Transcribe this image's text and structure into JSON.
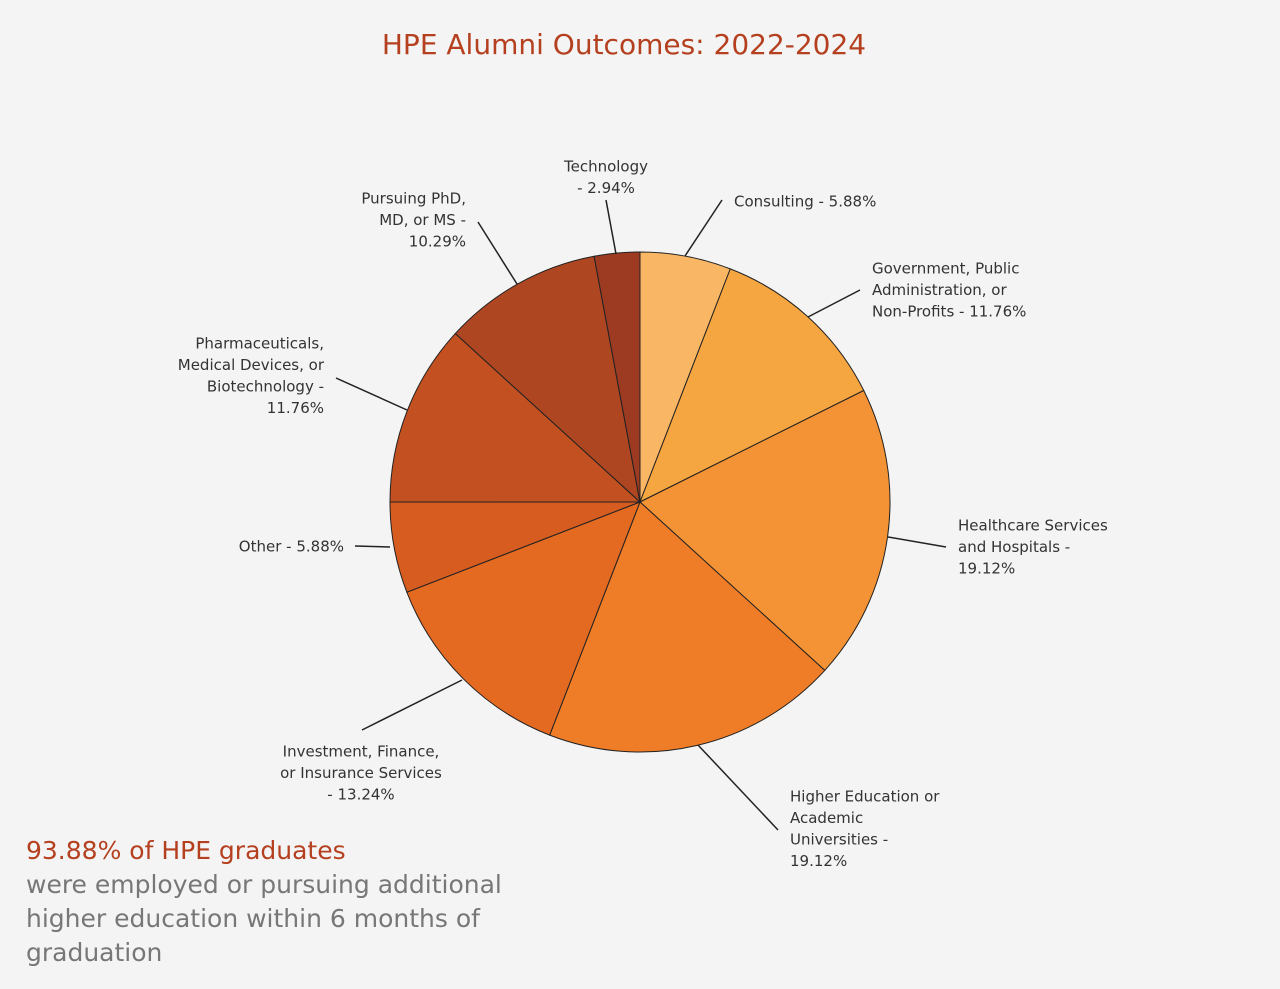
{
  "chart_data": {
    "type": "pie",
    "title": "HPE Alumni Outcomes: 2022-2024",
    "values": [
      5.88,
      11.76,
      19.12,
      19.12,
      13.24,
      5.88,
      11.76,
      10.29,
      2.94
    ],
    "labels": [
      [
        "Consulting -  5.88%"
      ],
      [
        "Government, Public",
        "Administration, or",
        "Non-Profits -  11.76%"
      ],
      [
        "Healthcare Services",
        "and Hospitals -",
        "19.12%"
      ],
      [
        "Higher Education or",
        "Academic",
        "Universities -",
        "19.12%"
      ],
      [
        "Investment, Finance,",
        "or Insurance Services",
        "- 13.24%"
      ],
      [
        "Other -  5.88%"
      ],
      [
        "Pharmaceuticals,",
        "Medical Devices, or",
        "Biotechnology -",
        "11.76%"
      ],
      [
        "Pursuing PhD,",
        "MD, or MS -",
        "10.29%"
      ],
      [
        "Technology",
        "- 2.94%"
      ]
    ],
    "colors": [
      "#f9b664",
      "#f6a641",
      "#f39335",
      "#ef7d27",
      "#e56a21",
      "#d65c20",
      "#c35020",
      "#ae4622",
      "#9c3a22"
    ],
    "annotation": {
      "highlight": "93.88% of HPE graduates",
      "lines": [
        "were employed or pursuing additional",
        "higher education within 6 months of",
        "graduation"
      ]
    }
  }
}
